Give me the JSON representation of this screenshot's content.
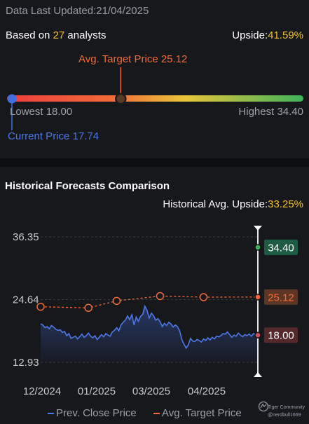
{
  "header": {
    "updated_text": "Data Last Updated:21/04/2025",
    "based_on_prefix": "Based on ",
    "analyst_count": "27",
    "based_on_suffix": " analysts",
    "upside_label": "Upside:",
    "upside_value": "41.59%"
  },
  "target_bar": {
    "avg_label": "Avg. Target Price 25.12",
    "lowest_label": "Lowest 18.00",
    "highest_label": "Highest 34.40",
    "current_label": "Current Price 17.74",
    "low": 18.0,
    "high": 34.4,
    "avg": 25.12,
    "current": 17.74
  },
  "historical": {
    "title": "Historical Forecasts Comparison",
    "upside_label": "Historical Avg. Upside:",
    "upside_value": "33.25%",
    "legend_prev": "Prev. Close Price",
    "legend_avg": "Avg. Target Price",
    "brand_name": "Tiger Community",
    "brand_user": "@nerdbull1669",
    "badge_high": "34.40",
    "badge_avg": "25.12",
    "badge_low": "18.00"
  },
  "colors": {
    "background": "#17181c",
    "price_line": "#4d78e6",
    "target_line": "#f26a38",
    "highlight": "#f2c12e",
    "badge_high_bg": "#1f5c44",
    "badge_avg_bg": "#5c3524",
    "badge_low_bg": "#55292c"
  },
  "chart_data": {
    "type": "line",
    "y_ticks": [
      "36.35",
      "24.64",
      "12.93"
    ],
    "ylim": [
      12.93,
      36.35
    ],
    "x_ticks": [
      "12/2024",
      "01/2025",
      "03/2025",
      "04/2025"
    ],
    "series": [
      {
        "name": "Prev. Close Price",
        "x": [
          0,
          1,
          2,
          3,
          4,
          5,
          6,
          7,
          8,
          9,
          10,
          11,
          12,
          13,
          14,
          15,
          16,
          17,
          18,
          19,
          20,
          21,
          22,
          23,
          24,
          25,
          26,
          27,
          28,
          29,
          30,
          31,
          32,
          33,
          34,
          35,
          36,
          37,
          38,
          39,
          40,
          41,
          42,
          43,
          44,
          45,
          46,
          47,
          48,
          49,
          50,
          51,
          52,
          53,
          54,
          55,
          56,
          57,
          58,
          59,
          60,
          61,
          62,
          63,
          64,
          65,
          66,
          67,
          68,
          69,
          70,
          71,
          72,
          73,
          74,
          75,
          76,
          77,
          78,
          79,
          80,
          81,
          82,
          83,
          84,
          85,
          86,
          87,
          88,
          89,
          90,
          91,
          92,
          93,
          94,
          95,
          96,
          97,
          98,
          99,
          100
        ],
        "y": [
          20.1,
          19.9,
          19.4,
          19.6,
          19.2,
          19.8,
          19.5,
          19.1,
          18.9,
          19.0,
          18.5,
          18.7,
          17.9,
          18.3,
          17.4,
          17.6,
          17.8,
          17.3,
          17.7,
          18.2,
          17.6,
          17.9,
          18.4,
          17.8,
          17.5,
          17.9,
          17.2,
          17.6,
          18.1,
          17.7,
          18.3,
          18.0,
          17.8,
          18.6,
          18.9,
          19.4,
          18.8,
          19.9,
          20.4,
          20.8,
          21.6,
          20.9,
          21.8,
          19.9,
          21.4,
          20.6,
          21.5,
          21.9,
          23.4,
          22.6,
          21.2,
          22.1,
          21.6,
          20.8,
          21.1,
          20.5,
          19.6,
          20.2,
          19.8,
          20.4,
          20.1,
          19.5,
          19.9,
          19.6,
          18.8,
          17.2,
          16.3,
          15.6,
          16.2,
          17.4,
          16.9,
          16.8,
          17.2,
          17.0,
          16.7,
          17.3,
          17.0,
          17.5,
          17.1,
          17.6,
          17.3,
          17.8,
          17.7,
          17.9,
          18.3,
          18.2,
          18.6,
          18.1,
          17.6,
          18.0,
          17.8,
          18.4,
          18.0,
          17.7,
          18.1,
          17.9,
          18.2,
          17.8,
          18.3,
          18.1,
          17.74
        ]
      },
      {
        "name": "Avg. Target Price",
        "x": [
          0,
          22,
          35,
          55,
          75,
          100
        ],
        "y": [
          23.3,
          23.1,
          24.4,
          25.3,
          25.1,
          25.12
        ]
      }
    ],
    "projection": {
      "high": 34.4,
      "avg": 25.12,
      "low": 18.0
    }
  }
}
